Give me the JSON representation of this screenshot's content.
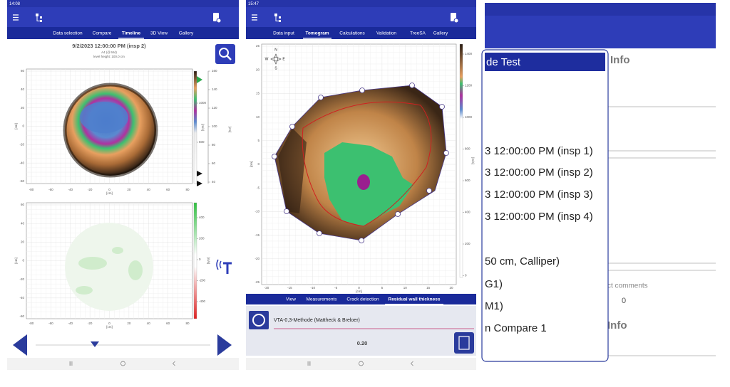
{
  "timeline_screen": {
    "status_time": "14:08",
    "tabs": [
      "Data selection",
      "Compare",
      "Timeline",
      "3D View",
      "Gallery"
    ],
    "title": "9/2/2023 12:00:00 PM (insp 2)",
    "subtitle": "A4 (@ M4)",
    "level": "level height: 100.0 cm",
    "top_plot": {
      "x_ticks": [
        "-80",
        "-60",
        "-40",
        "-20",
        "0",
        "20",
        "40",
        "60",
        "80"
      ],
      "y_ticks": [
        "60",
        "40",
        "20",
        "0",
        "-20",
        "-40",
        "-60"
      ],
      "x_label": "[cm]",
      "y_label": "[cm]",
      "colorbar_ticks": [
        "1000",
        "500",
        "0"
      ],
      "colorbar_label": "[m/s]",
      "scale_ticks": [
        "160",
        "140",
        "120",
        "100",
        "80",
        "60",
        "40"
      ],
      "scale_label": "[cm]"
    },
    "bottom_plot": {
      "x_ticks": [
        "-80",
        "-60",
        "-40",
        "-20",
        "0",
        "20",
        "40",
        "60",
        "80"
      ],
      "y_ticks": [
        "60",
        "40",
        "20",
        "0",
        "-20",
        "-40",
        "-60"
      ],
      "x_label": "[cm]",
      "y_label": "[cm]",
      "colorbar_ticks": [
        "400",
        "200",
        "0",
        "-200",
        "-400"
      ],
      "colorbar_label": "[m/s]"
    }
  },
  "tomogram_screen": {
    "status_time": "15:47",
    "tabs": [
      "Data input",
      "Tomogram",
      "Calculations",
      "Validation",
      "TreeSA",
      "Gallery"
    ],
    "compass": [
      "N",
      "E",
      "S",
      "W"
    ],
    "plot": {
      "x_ticks": [
        "-20",
        "-15",
        "-10",
        "-5",
        "0",
        "5",
        "10",
        "15",
        "20"
      ],
      "y_ticks": [
        "25",
        "20",
        "15",
        "10",
        "5",
        "0",
        "-5",
        "-10",
        "-15",
        "-20",
        "-25"
      ],
      "x_label": "[cm]",
      "y_label": "[cm]",
      "colorbar_ticks": [
        "1400",
        "1200",
        "1000",
        "800",
        "600",
        "400",
        "200",
        "0"
      ],
      "colorbar_label": "[m/s]"
    },
    "bottom_tabs": [
      "View",
      "Measurements",
      "Crack detection",
      "Residual wall thickness"
    ],
    "method": "VTA-0,3-Methode (Mattheck & Breloer)",
    "result": "0.20"
  },
  "dialog_screen": {
    "dialog_title": "de Test",
    "background_info": "Info",
    "items": [
      "3 12:00:00 PM (insp 1)",
      "3 12:00:00 PM (insp 2)",
      "3 12:00:00 PM (insp 3)",
      "3 12:00:00 PM (insp 4)",
      "50 cm, Calliper)",
      "G1)",
      "M1)",
      "n Compare 1"
    ],
    "comments_label": "ct comments",
    "comments_count": "0",
    "background_info_2": "Info"
  }
}
